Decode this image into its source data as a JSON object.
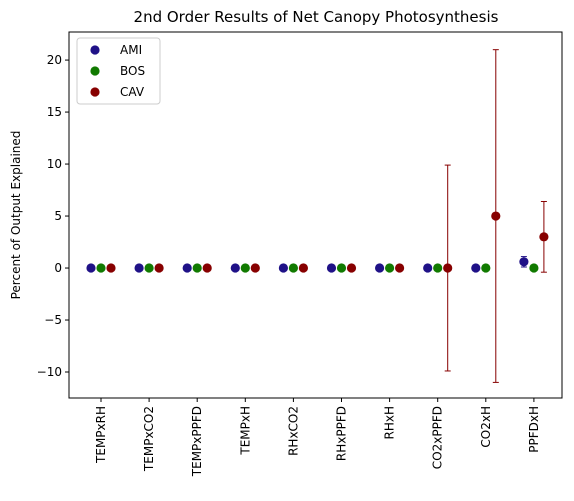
{
  "chart_data": {
    "type": "scatter",
    "title": "2nd Order Results of Net Canopy Photosynthesis",
    "xlabel": "",
    "ylabel": "Percent of Output Explained",
    "categories": [
      "TEMPxRH",
      "TEMPxCO2",
      "TEMPxPPFD",
      "TEMPxH",
      "RHxCO2",
      "RHxPPFD",
      "RHxH",
      "CO2xPPFD",
      "CO2xH",
      "PPFDxH"
    ],
    "ylim": [
      -12.5,
      22.7
    ],
    "yticks": [
      -10,
      -5,
      0,
      5,
      10,
      15,
      20
    ],
    "ytick_labels": [
      "−10",
      "−5",
      "0",
      "5",
      "10",
      "15",
      "20"
    ],
    "grid": false,
    "legend_position": "top-left",
    "error_bars": true,
    "series": [
      {
        "name": "AMI",
        "color": "#1f1187",
        "values": [
          0,
          0,
          0,
          0,
          0,
          0,
          0,
          0,
          0,
          0.6
        ],
        "errors": [
          0,
          0,
          0,
          0,
          0,
          0,
          0,
          0,
          0,
          0.5
        ]
      },
      {
        "name": "BOS",
        "color": "#117a00",
        "values": [
          0,
          0,
          0,
          0,
          0,
          0,
          0,
          0,
          0,
          0
        ],
        "errors": [
          0,
          0,
          0,
          0,
          0,
          0,
          0,
          0,
          0,
          0
        ]
      },
      {
        "name": "CAV",
        "color": "#870000",
        "values": [
          0,
          0,
          0,
          0,
          0,
          0,
          0,
          0,
          5.0,
          3.0
        ],
        "errors": [
          0,
          0,
          0,
          0,
          0,
          0,
          0,
          9.9,
          16.0,
          3.4
        ]
      }
    ]
  }
}
